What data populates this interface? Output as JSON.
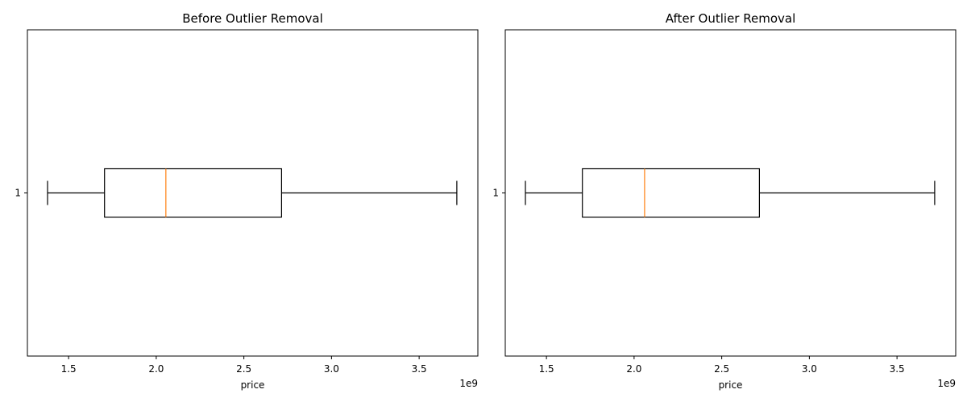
{
  "chart_data": [
    {
      "type": "boxplot",
      "orientation": "horizontal",
      "title": "Before Outlier Removal",
      "xlabel": "price",
      "ylabel": "",
      "offset_text": "1e9",
      "xlim": [
        1.265,
        3.835
      ],
      "xticks": [
        1.5,
        2.0,
        2.5,
        3.0,
        3.5
      ],
      "xtick_labels": [
        "1.5",
        "2.0",
        "2.5",
        "3.0",
        "3.5"
      ],
      "yticks": [
        "1"
      ],
      "grid": false,
      "boxes": [
        {
          "label": "1",
          "whisker_low": 1.38,
          "q1": 1.705,
          "median": 2.055,
          "q3": 2.715,
          "whisker_high": 3.715
        }
      ],
      "colors": {
        "box": "#000000",
        "median": "#ff7f0e",
        "whisker": "#000000"
      }
    },
    {
      "type": "boxplot",
      "orientation": "horizontal",
      "title": "After Outlier Removal",
      "xlabel": "price",
      "ylabel": "",
      "offset_text": "1e9",
      "xlim": [
        1.265,
        3.835
      ],
      "xticks": [
        1.5,
        2.0,
        2.5,
        3.0,
        3.5
      ],
      "xtick_labels": [
        "1.5",
        "2.0",
        "2.5",
        "3.0",
        "3.5"
      ],
      "yticks": [
        "1"
      ],
      "grid": false,
      "boxes": [
        {
          "label": "1",
          "whisker_low": 1.38,
          "q1": 1.705,
          "median": 2.06,
          "q3": 2.715,
          "whisker_high": 3.715
        }
      ],
      "colors": {
        "box": "#000000",
        "median": "#ff7f0e",
        "whisker": "#000000"
      }
    }
  ]
}
